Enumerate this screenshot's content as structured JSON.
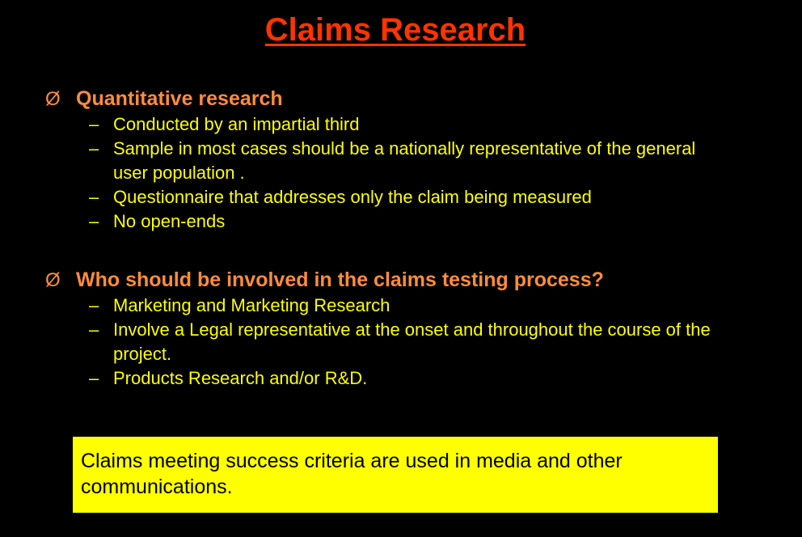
{
  "title": "Claims Research",
  "sections": [
    {
      "marker": "Ø",
      "heading": "Quantitative research",
      "items": [
        "Conducted by an impartial third",
        "Sample in most cases should be a nationally representative of the general user population .",
        "Questionnaire that addresses only the claim being measured",
        "No open-ends"
      ]
    },
    {
      "marker": "Ø",
      "heading": "Who should be involved in the claims testing process?",
      "items": [
        "Marketing and Marketing Research",
        "Involve a Legal representative at the onset and throughout the course of the project.",
        "Products Research and/or R&D."
      ]
    }
  ],
  "sub_marker": "–",
  "callout": "Claims meeting success criteria are used in media and other communications.",
  "colors": {
    "background": "#000000",
    "title": "#ff3300",
    "heading": "#ff8c3c",
    "bullet_text": "#ffff00",
    "callout_bg": "#ffff00",
    "callout_text": "#000000"
  }
}
